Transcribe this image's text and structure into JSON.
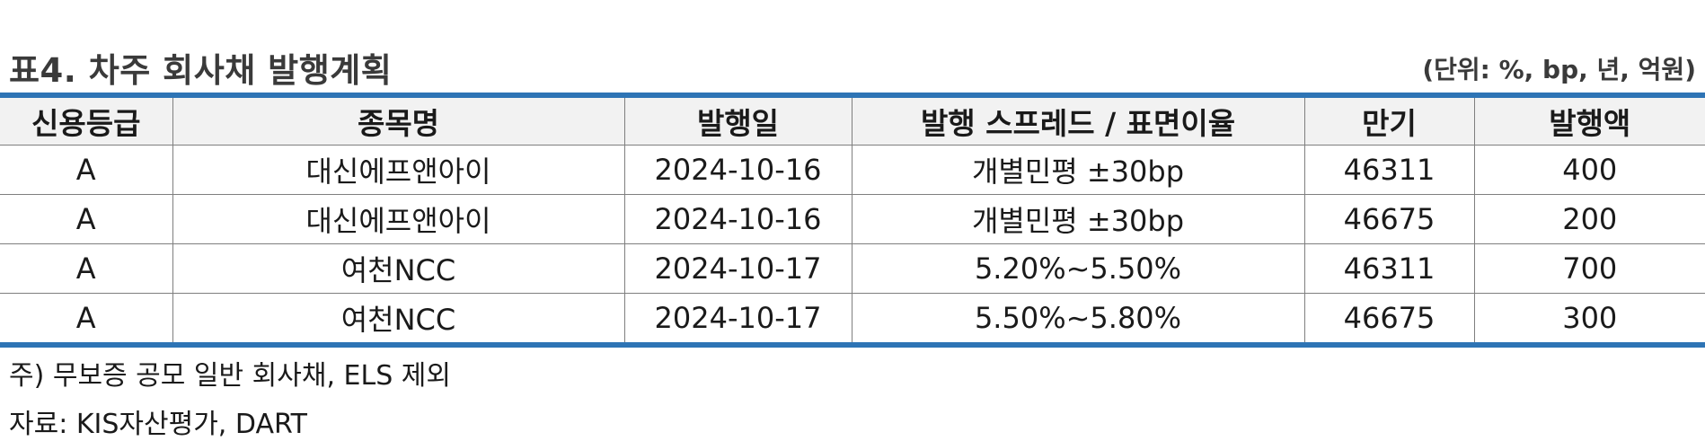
{
  "title": "표4. 차주 회사채 발행계획",
  "unit_note": "(단위: %, bp, 년, 억원)",
  "table": {
    "headers": [
      "신용등급",
      "종목명",
      "발행일",
      "발행 스프레드 / 표면이율",
      "만기",
      "발행액"
    ],
    "rows": [
      [
        "A",
        "대신에프앤아이",
        "2024-10-16",
        "개별민평 ±30bp",
        "46311",
        "400"
      ],
      [
        "A",
        "대신에프앤아이",
        "2024-10-16",
        "개별민평 ±30bp",
        "46675",
        "200"
      ],
      [
        "A",
        "여천NCC",
        "2024-10-17",
        "5.20%~5.50%",
        "46311",
        "700"
      ],
      [
        "A",
        "여천NCC",
        "2024-10-17",
        "5.50%~5.80%",
        "46675",
        "300"
      ]
    ]
  },
  "footnote": "주) 무보증 공모 일반 회사채, ELS 제외",
  "source": "자료: KIS자산평가, DART",
  "colors": {
    "rule": "#2e74b5",
    "header_bg": "#f2f2f2"
  }
}
